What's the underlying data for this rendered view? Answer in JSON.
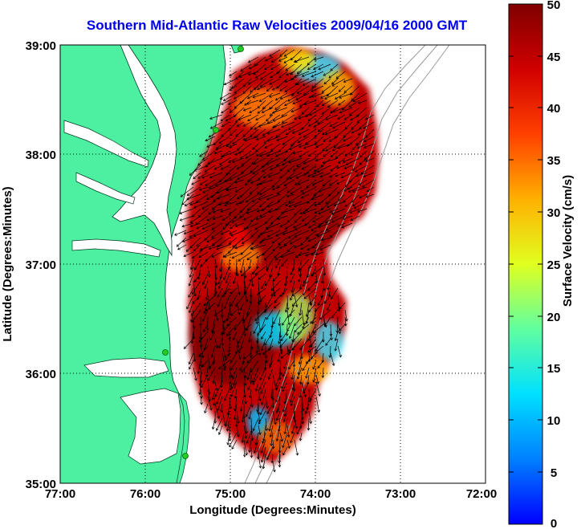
{
  "title": "Southern Mid-Atlantic Raw Velocities 2009/04/16 2000 GMT",
  "x_axis": {
    "label": "Longitude (Degrees:Minutes)",
    "ticks": [
      "77:00",
      "76:00",
      "75:00",
      "74:00",
      "73:00",
      "72:00"
    ],
    "tick_values": [
      -77,
      -76,
      -75,
      -74,
      -73,
      -72
    ]
  },
  "y_axis": {
    "label": "Latitude (Degrees:Minutes)",
    "ticks": [
      "39:00",
      "38:00",
      "37:00",
      "36:00",
      "35:00"
    ],
    "tick_values": [
      39,
      38,
      37,
      36,
      35
    ]
  },
  "colorbar": {
    "label": "Surface Velocity (cm/s)",
    "ticks": [
      "50",
      "45",
      "40",
      "35",
      "30",
      "25",
      "20",
      "15",
      "10",
      "5",
      "0"
    ],
    "range": [
      0,
      50
    ],
    "colormap": "jet"
  },
  "colors": {
    "land": "#4df0a0",
    "water": "#ffffff",
    "title": "#0000ee",
    "station": "#22cc22",
    "vector": "#000000",
    "isobath": "#9a9a9a"
  },
  "chart_data": {
    "type": "heatmap",
    "title": "Southern Mid-Atlantic Raw Velocities 2009/04/16 2000 GMT",
    "xlabel": "Longitude (Degrees:Minutes)",
    "ylabel": "Latitude (Degrees:Minutes)",
    "xlim": [
      -77,
      -72
    ],
    "ylim": [
      35,
      39
    ],
    "grid": true,
    "colorbar_label": "Surface Velocity (cm/s)",
    "clim": [
      0,
      50
    ],
    "stations": [
      {
        "lon": -74.92,
        "lat": 39.0
      },
      {
        "lon": -75.16,
        "lat": 38.22
      },
      {
        "lon": -75.72,
        "lat": 36.17
      },
      {
        "lon": -75.53,
        "lat": 35.26
      }
    ]
  }
}
